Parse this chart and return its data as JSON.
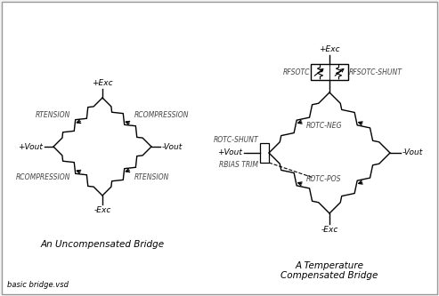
{
  "bg_color": "#f2f2f2",
  "inner_bg": "#ffffff",
  "border_color": "#999999",
  "line_color": "#000000",
  "text_color": "#444444",
  "title1": "An Uncompensated Bridge",
  "title2_line1": "A Temperature",
  "title2_line2": "Compensated Bridge",
  "footer": "basic bridge.vsd",
  "label_top1": "+Exc",
  "label_bot1": "-Exc",
  "label_left1": "+Vout",
  "label_right1": "-Vout",
  "label_ul1": "RTENSION",
  "label_ur1": "RCOMPRESSION",
  "label_ll1": "RCOMPRESSION",
  "label_lr1": "RTENSION",
  "label_top2": "+Exc",
  "label_bot2": "-Exc",
  "label_left2": "+Vout",
  "label_right2": "-Vout",
  "label_rotc_shunt": "ROTC-SHUNT",
  "label_rotc_neg": "ROTC-NEG",
  "label_rbias": "RBIAS TRIM",
  "label_rotc_pos": "ROTC-POS",
  "label_rfsotc": "RFSOTC",
  "label_rfsotc_shunt": "RFSOTC-SHUNT"
}
